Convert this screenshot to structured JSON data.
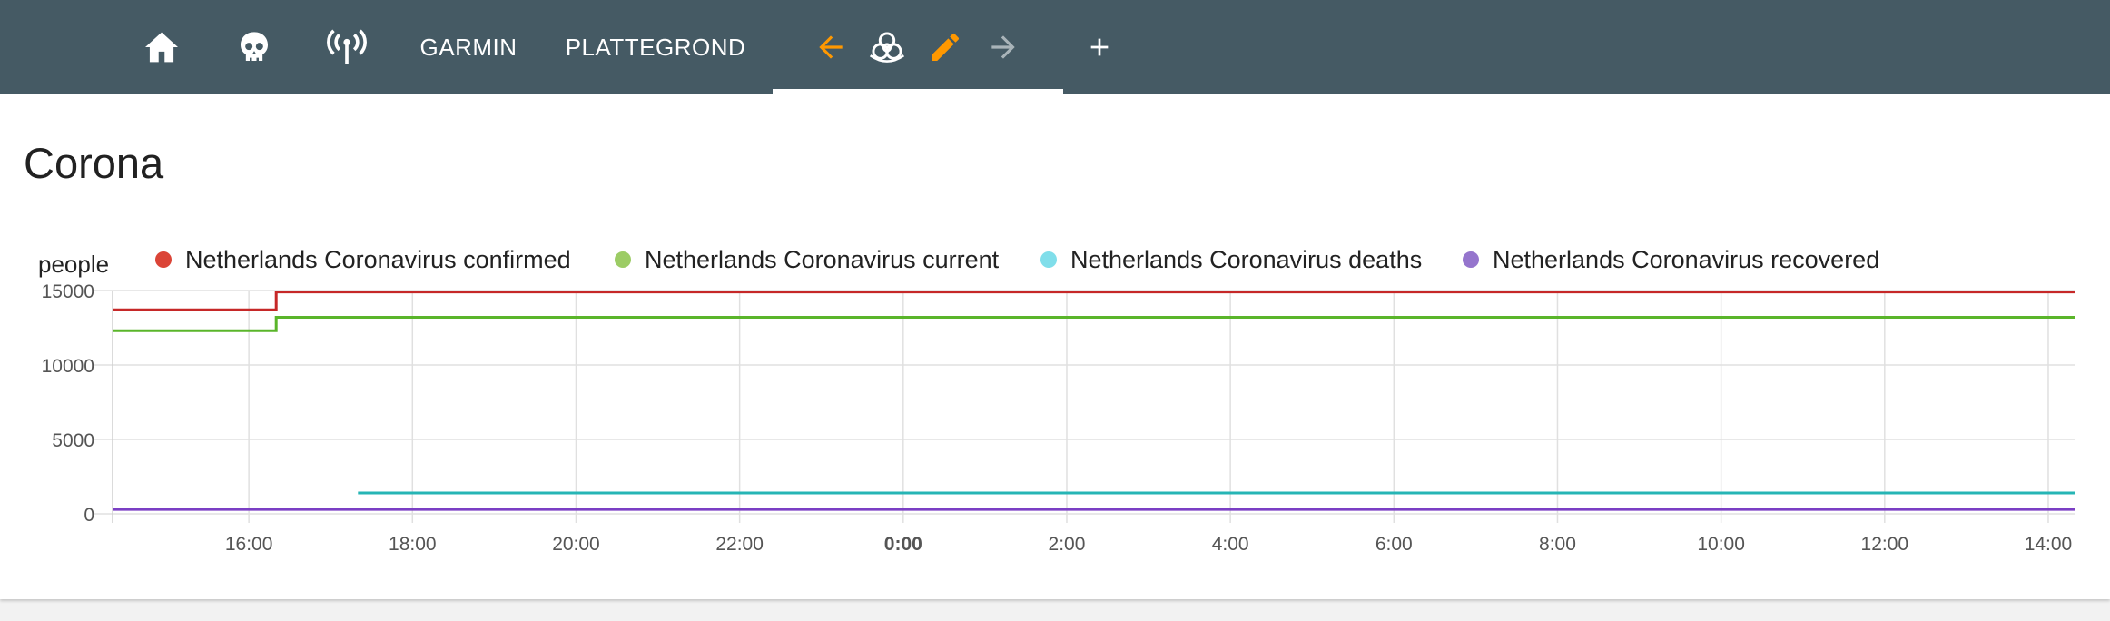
{
  "topbar": {
    "icons": {
      "home": "home-icon",
      "skull": "skull-icon",
      "antenna": "broadcast-antenna-icon",
      "back": "arrow-left-icon",
      "biohazard": "biohazard-icon",
      "edit": "pencil-icon",
      "forward": "arrow-right-icon",
      "add": "plus-icon"
    },
    "tabs": [
      {
        "label": "GARMIN"
      },
      {
        "label": "PLATTEGROND"
      }
    ],
    "colors": {
      "background": "#455a64",
      "accent": "#ff9800"
    }
  },
  "card": {
    "title": "Corona"
  },
  "chart_data": {
    "type": "line",
    "step": true,
    "ylabel": "people",
    "ylim": [
      0,
      15000
    ],
    "yticks": [
      "0",
      "5000",
      "10000",
      "15000"
    ],
    "xlim": [
      "14:20",
      "14:20 next day"
    ],
    "xticks": [
      {
        "label": "16:00",
        "bold": false
      },
      {
        "label": "18:00",
        "bold": false
      },
      {
        "label": "20:00",
        "bold": false
      },
      {
        "label": "22:00",
        "bold": false
      },
      {
        "label": "0:00",
        "bold": true
      },
      {
        "label": "2:00",
        "bold": false
      },
      {
        "label": "4:00",
        "bold": false
      },
      {
        "label": "6:00",
        "bold": false
      },
      {
        "label": "8:00",
        "bold": false
      },
      {
        "label": "10:00",
        "bold": false
      },
      {
        "label": "12:00",
        "bold": false
      },
      {
        "label": "14:00",
        "bold": false
      }
    ],
    "grid": true,
    "legend_position": "top",
    "series": [
      {
        "name": "Netherlands Coronavirus confirmed",
        "color": "#db4437",
        "line_color": "#c62828",
        "points": [
          [
            "14:20",
            13700
          ],
          [
            "16:20",
            13700
          ],
          [
            "16:20",
            14900
          ],
          [
            "14:20 next day",
            14900
          ]
        ]
      },
      {
        "name": "Netherlands Coronavirus current",
        "color": "#9ccc65",
        "line_color": "#5ab52a",
        "points": [
          [
            "14:20",
            12300
          ],
          [
            "16:20",
            12300
          ],
          [
            "16:20",
            13200
          ],
          [
            "14:20 next day",
            13200
          ]
        ]
      },
      {
        "name": "Netherlands Coronavirus deaths",
        "color": "#80deea",
        "line_color": "#26b5b5",
        "points": [
          [
            "17:20",
            1400
          ],
          [
            "14:20 next day",
            1400
          ]
        ]
      },
      {
        "name": "Netherlands Coronavirus recovered",
        "color": "#9575cd",
        "line_color": "#7b3fc4",
        "points": [
          [
            "14:20",
            300
          ],
          [
            "14:20 next day",
            300
          ]
        ]
      }
    ]
  }
}
